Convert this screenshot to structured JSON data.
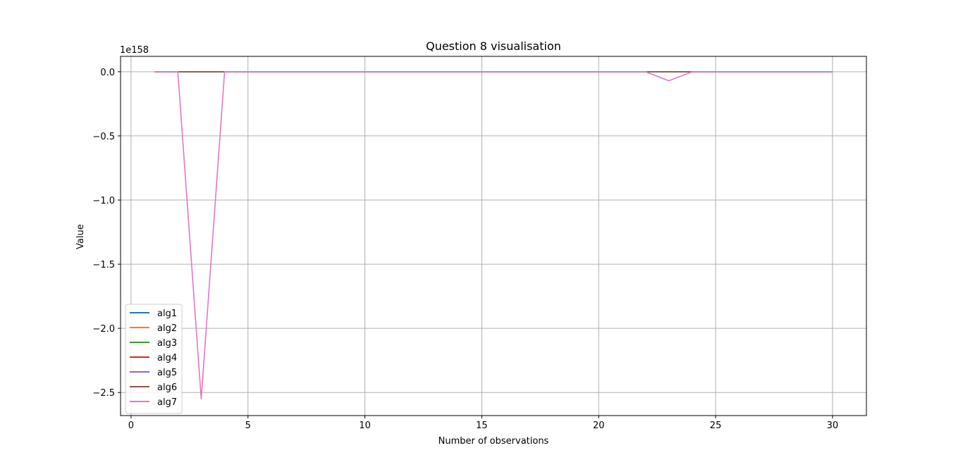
{
  "chart_data": {
    "type": "line",
    "title": "Question 8 visualisation",
    "xlabel": "Number of observations",
    "ylabel": "Value",
    "y_offset_label": "1e158",
    "y_scale": 1e+158,
    "xlim": [
      -0.45,
      31.45
    ],
    "ylim": [
      -2.68,
      0.12
    ],
    "x_ticks": [
      0,
      5,
      10,
      15,
      20,
      25,
      30
    ],
    "x_tick_labels": [
      "0",
      "5",
      "10",
      "15",
      "20",
      "25",
      "30"
    ],
    "y_ticks": [
      0.0,
      -0.5,
      -1.0,
      -1.5,
      -2.0,
      -2.5
    ],
    "y_tick_labels": [
      "0.0",
      "−0.5",
      "−1.0",
      "−1.5",
      "−2.0",
      "−2.5"
    ],
    "grid": true,
    "legend_position": "lower-left",
    "x": [
      1,
      2,
      3,
      4,
      5,
      6,
      7,
      8,
      9,
      10,
      11,
      12,
      13,
      14,
      15,
      16,
      17,
      18,
      19,
      20,
      21,
      22,
      23,
      24,
      25,
      26,
      27,
      28,
      29,
      30
    ],
    "series": [
      {
        "name": "alg1",
        "color": "#1f77b4",
        "values": [
          0,
          0,
          0,
          0,
          0,
          0,
          0,
          0,
          0,
          0,
          0,
          0,
          0,
          0,
          0,
          0,
          0,
          0,
          0,
          0,
          0,
          0,
          0,
          0,
          0,
          0,
          0,
          0,
          0,
          0
        ]
      },
      {
        "name": "alg2",
        "color": "#ff7f0e",
        "values": [
          0,
          0,
          0,
          0,
          0,
          0,
          0,
          0,
          0,
          0,
          0,
          0,
          0,
          0,
          0,
          0,
          0,
          0,
          0,
          0,
          0,
          0,
          0,
          0,
          0,
          0,
          0,
          0,
          0,
          0
        ]
      },
      {
        "name": "alg3",
        "color": "#2ca02c",
        "values": [
          0,
          0,
          0,
          0,
          0,
          0,
          0,
          0,
          0,
          0,
          0,
          0,
          0,
          0,
          0,
          0,
          0,
          0,
          0,
          0,
          0,
          0,
          0,
          0,
          0,
          0,
          0,
          0,
          0,
          0
        ]
      },
      {
        "name": "alg4",
        "color": "#d62728",
        "values": [
          0,
          0,
          0,
          0,
          0,
          0,
          0,
          0,
          0,
          0,
          0,
          0,
          0,
          0,
          0,
          0,
          0,
          0,
          0,
          0,
          0,
          0,
          0,
          0,
          0,
          0,
          0,
          0,
          0,
          0
        ]
      },
      {
        "name": "alg5",
        "color": "#9467bd",
        "values": [
          0,
          0,
          0,
          0,
          0,
          0,
          0,
          0,
          0,
          0,
          0,
          0,
          0,
          0,
          0,
          0,
          0,
          0,
          0,
          0,
          0,
          0,
          0,
          0,
          0,
          0,
          0,
          0,
          0,
          0
        ]
      },
      {
        "name": "alg6",
        "color": "#8c564b",
        "values": [
          0,
          0,
          0,
          0,
          0,
          0,
          0,
          0,
          0,
          0,
          0,
          0,
          0,
          0,
          0,
          0,
          0,
          0,
          0,
          0,
          0,
          0,
          0,
          0,
          0,
          0,
          0,
          0,
          0,
          0
        ]
      },
      {
        "name": "alg7",
        "color": "#e377c2",
        "values": [
          0,
          0,
          -2.55,
          0,
          0,
          0,
          0,
          0,
          0,
          0,
          0,
          0,
          0,
          0,
          0,
          0,
          0,
          0,
          0,
          0,
          0,
          0,
          -0.07,
          0,
          0,
          0,
          0,
          0,
          0,
          0
        ]
      }
    ]
  }
}
